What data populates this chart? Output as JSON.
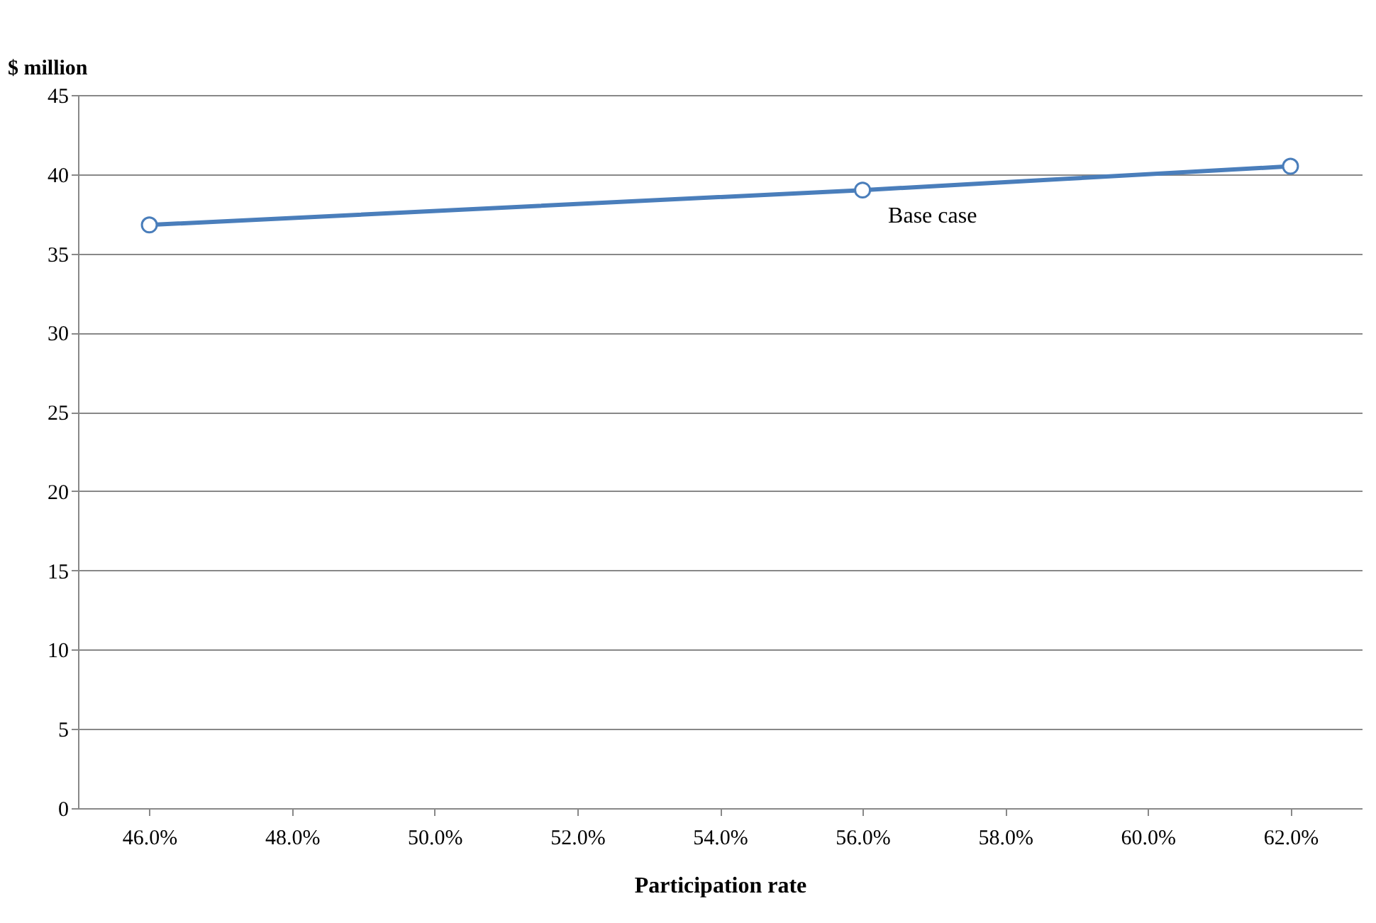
{
  "chart_data": {
    "type": "line",
    "xlabel": "Participation rate",
    "ylabel": "$ million",
    "x": [
      46,
      56,
      62
    ],
    "series": [
      {
        "color": "#4a7ebb",
        "values": [
          36.8,
          39.0,
          40.5
        ]
      }
    ],
    "xlim": [
      45,
      63
    ],
    "xticks": [
      {
        "value": 46,
        "label": "46.0%"
      },
      {
        "value": 48,
        "label": "48.0%"
      },
      {
        "value": 50,
        "label": "50.0%"
      },
      {
        "value": 52,
        "label": "52.0%"
      },
      {
        "value": 54,
        "label": "54.0%"
      },
      {
        "value": 56,
        "label": "56.0%"
      },
      {
        "value": 58,
        "label": "58.0%"
      },
      {
        "value": 60,
        "label": "60.0%"
      },
      {
        "value": 62,
        "label": "62.0%"
      }
    ],
    "ylim": [
      0,
      45
    ],
    "yticks": [
      0,
      5,
      10,
      15,
      20,
      25,
      30,
      35,
      40,
      45
    ],
    "grid": "y",
    "marker": "circle",
    "line_style": "solid",
    "annotations": [
      {
        "text": "Base case",
        "x": 56,
        "y": 39.0
      }
    ]
  }
}
